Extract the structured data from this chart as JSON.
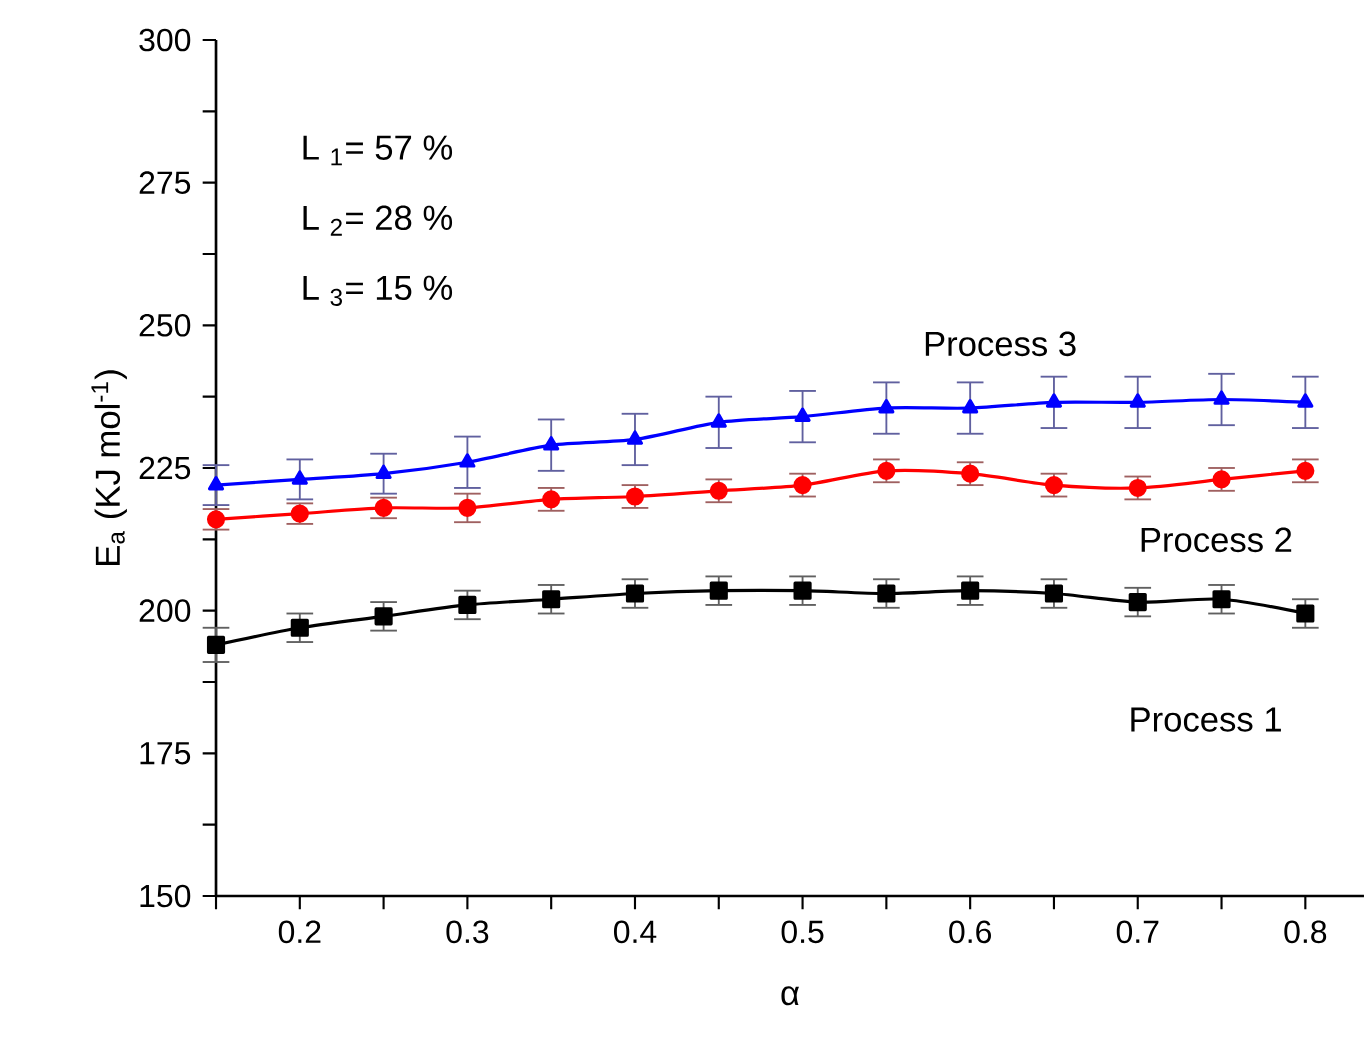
{
  "chart_data": {
    "type": "line",
    "xlabel": "α",
    "ylabel": "E$_{a}$ (KJ mol$^{-1}$)",
    "x": [
      0.15,
      0.2,
      0.25,
      0.3,
      0.35,
      0.4,
      0.45,
      0.5,
      0.55,
      0.6,
      0.65,
      0.7,
      0.75,
      0.8
    ],
    "series": [
      {
        "name": "Process 1",
        "color": "#000000",
        "marker": "square",
        "values": [
          194,
          197,
          199,
          201,
          202,
          203,
          203.5,
          203.5,
          203,
          203.5,
          203,
          201.5,
          202,
          199.5
        ],
        "errors": [
          3,
          2.5,
          2.5,
          2.5,
          2.5,
          2.5,
          2.5,
          2.5,
          2.5,
          2.5,
          2.5,
          2.5,
          2.5,
          2.5
        ]
      },
      {
        "name": "Process 2",
        "color": "#ff0000",
        "marker": "circle",
        "values": [
          216,
          217,
          218,
          218,
          219.5,
          220,
          221,
          222,
          224.5,
          224,
          222,
          221.5,
          223,
          224.5
        ],
        "errors": [
          1.8,
          1.8,
          1.8,
          2.5,
          2,
          2,
          2,
          2,
          2,
          2,
          2,
          2,
          2,
          2
        ]
      },
      {
        "name": "Process 3",
        "color": "#0000ff",
        "marker": "triangle",
        "values": [
          222,
          223,
          224,
          226,
          229,
          230,
          233,
          234,
          235.5,
          235.5,
          236.5,
          236.5,
          237,
          236.5
        ],
        "errors": [
          3.5,
          3.5,
          3.5,
          4.5,
          4.5,
          4.5,
          4.5,
          4.5,
          4.5,
          4.5,
          4.5,
          4.5,
          4.5,
          4.5
        ]
      }
    ],
    "annotations": [
      "L $_{1}$= 57 %",
      "L $_{2}$= 28 %",
      "L $_{3}$= 15 %"
    ],
    "xlim": [
      0.15,
      0.835
    ],
    "ylim": [
      150,
      300
    ],
    "xticks": [
      {
        "value": 0.15,
        "label": null
      },
      0.2,
      {
        "value": 0.25,
        "label": null
      },
      0.3,
      {
        "value": 0.35,
        "label": null
      },
      0.4,
      {
        "value": 0.45,
        "label": null
      },
      0.5,
      {
        "value": 0.55,
        "label": null
      },
      0.6,
      {
        "value": 0.65,
        "label": null
      },
      0.7,
      {
        "value": 0.75,
        "label": null
      },
      0.8
    ],
    "yticks": [
      150,
      {
        "value": 162.5,
        "label": null
      },
      175,
      {
        "value": 187.5,
        "label": null
      },
      200,
      {
        "value": 212.5,
        "label": null
      },
      225,
      {
        "value": 237.5,
        "label": null
      },
      250,
      {
        "value": 262.5,
        "label": null
      },
      275,
      {
        "value": 287.5,
        "label": null
      },
      300
    ],
    "grid": false,
    "line_style": "solid"
  }
}
